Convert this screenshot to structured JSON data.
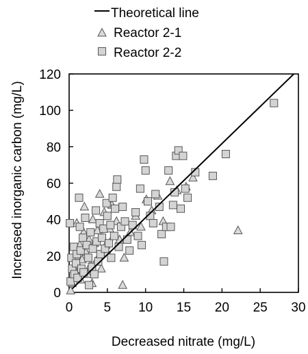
{
  "chart_data": {
    "type": "scatter",
    "xlabel": "Decreased nitrate (mg/L)",
    "ylabel": "Increased inorganic carbon (mg/L)",
    "xlim": [
      0,
      30
    ],
    "ylim": [
      0,
      120
    ],
    "xticks": [
      0,
      5,
      10,
      15,
      20,
      25,
      30
    ],
    "yticks": [
      0,
      20,
      40,
      60,
      80,
      100,
      120
    ],
    "grid": false,
    "legend_position": "top",
    "line": {
      "name": "Theoretical line",
      "x": [
        0.4,
        29.4
      ],
      "y": [
        2,
        120
      ]
    },
    "series": [
      {
        "name": "Reactor 2-1",
        "marker": "triangle",
        "points": [
          [
            0.2,
            1
          ],
          [
            0.4,
            5
          ],
          [
            0.6,
            8
          ],
          [
            0.8,
            12
          ],
          [
            0.9,
            20
          ],
          [
            1.0,
            38
          ],
          [
            1.2,
            15
          ],
          [
            1.4,
            26
          ],
          [
            1.5,
            7
          ],
          [
            1.7,
            18
          ],
          [
            1.9,
            33
          ],
          [
            2.0,
            47
          ],
          [
            2.2,
            22
          ],
          [
            2.4,
            10
          ],
          [
            2.6,
            29
          ],
          [
            2.8,
            15
          ],
          [
            3.0,
            5
          ],
          [
            3.1,
            40
          ],
          [
            3.3,
            27
          ],
          [
            3.5,
            17
          ],
          [
            3.7,
            34
          ],
          [
            3.9,
            20
          ],
          [
            4.0,
            54
          ],
          [
            4.2,
            13
          ],
          [
            4.4,
            30
          ],
          [
            4.6,
            44
          ],
          [
            4.8,
            26
          ],
          [
            5.0,
            22
          ],
          [
            5.3,
            35
          ],
          [
            5.6,
            48
          ],
          [
            5.8,
            31
          ],
          [
            6.2,
            39
          ],
          [
            6.6,
            29
          ],
          [
            7.0,
            4
          ],
          [
            7.2,
            19
          ],
          [
            8.0,
            33
          ],
          [
            8.7,
            42
          ],
          [
            9.4,
            36
          ],
          [
            10.1,
            51
          ],
          [
            10.8,
            45
          ],
          [
            11.6,
            53
          ],
          [
            12.3,
            39
          ],
          [
            13.2,
            61
          ],
          [
            14.1,
            56
          ],
          [
            15.3,
            58
          ],
          [
            16.2,
            63
          ],
          [
            22.1,
            34
          ]
        ]
      },
      {
        "name": "Reactor 2-2",
        "marker": "square",
        "points": [
          [
            0.1,
            38
          ],
          [
            0.2,
            6
          ],
          [
            0.3,
            19
          ],
          [
            0.4,
            13
          ],
          [
            0.6,
            25
          ],
          [
            0.7,
            10
          ],
          [
            0.9,
            16
          ],
          [
            1.0,
            21
          ],
          [
            1.1,
            8
          ],
          [
            1.3,
            52
          ],
          [
            1.4,
            36
          ],
          [
            1.5,
            23
          ],
          [
            1.6,
            13
          ],
          [
            1.8,
            30
          ],
          [
            1.9,
            11
          ],
          [
            2.1,
            41
          ],
          [
            2.3,
            26
          ],
          [
            2.5,
            19
          ],
          [
            2.6,
            4
          ],
          [
            2.8,
            33
          ],
          [
            3.0,
            14
          ],
          [
            3.1,
            24
          ],
          [
            3.3,
            10
          ],
          [
            3.5,
            45
          ],
          [
            3.6,
            28
          ],
          [
            3.8,
            17
          ],
          [
            4.0,
            38
          ],
          [
            4.1,
            21
          ],
          [
            4.3,
            30
          ],
          [
            4.5,
            35
          ],
          [
            4.7,
            24
          ],
          [
            4.9,
            49
          ],
          [
            5.0,
            42
          ],
          [
            5.2,
            27
          ],
          [
            5.4,
            37
          ],
          [
            5.5,
            19
          ],
          [
            5.7,
            52
          ],
          [
            5.9,
            31
          ],
          [
            6.0,
            46
          ],
          [
            6.2,
            58
          ],
          [
            6.3,
            62
          ],
          [
            6.5,
            25
          ],
          [
            6.8,
            36
          ],
          [
            7.0,
            47
          ],
          [
            7.3,
            39
          ],
          [
            7.6,
            29
          ],
          [
            7.9,
            23
          ],
          [
            8.3,
            37
          ],
          [
            8.7,
            44
          ],
          [
            9.0,
            31
          ],
          [
            9.3,
            57
          ],
          [
            9.5,
            26
          ],
          [
            9.8,
            73
          ],
          [
            10.0,
            67
          ],
          [
            10.3,
            50
          ],
          [
            10.6,
            42
          ],
          [
            11.0,
            38
          ],
          [
            11.3,
            54
          ],
          [
            11.8,
            47
          ],
          [
            12.1,
            32
          ],
          [
            12.4,
            17
          ],
          [
            12.7,
            36
          ],
          [
            13.0,
            67
          ],
          [
            13.3,
            36
          ],
          [
            13.6,
            48
          ],
          [
            13.8,
            55
          ],
          [
            14.0,
            75
          ],
          [
            14.3,
            78
          ],
          [
            14.6,
            46
          ],
          [
            14.9,
            75
          ],
          [
            15.2,
            57
          ],
          [
            15.5,
            52
          ],
          [
            16.5,
            66
          ],
          [
            18.8,
            64
          ],
          [
            20.5,
            76
          ],
          [
            26.8,
            104
          ]
        ]
      }
    ]
  }
}
